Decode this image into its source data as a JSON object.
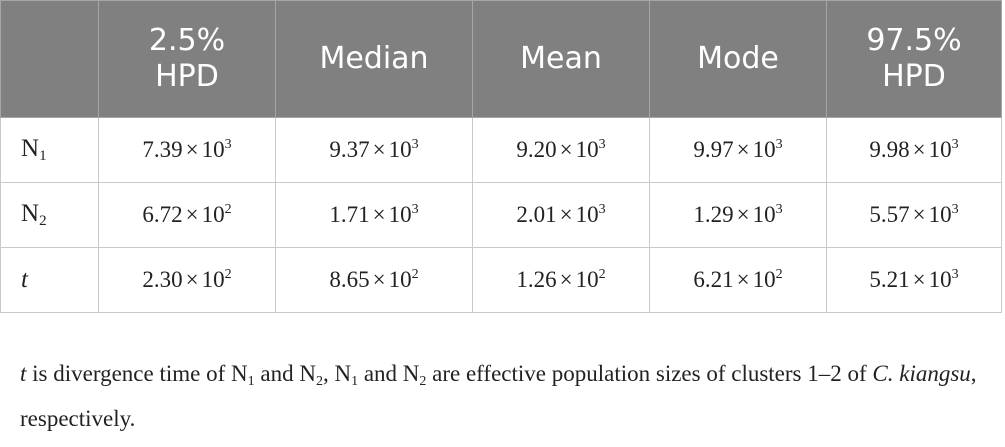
{
  "table": {
    "headers": [
      "",
      "2.5% HPD",
      "Median",
      "Mean",
      "Mode",
      "97.5% HPD"
    ],
    "header_lines": [
      [
        "",
        ""
      ],
      [
        "2.5%",
        "HPD"
      ],
      [
        "Median",
        ""
      ],
      [
        "Mean",
        ""
      ],
      [
        "Mode",
        ""
      ],
      [
        "97.5%",
        "HPD"
      ]
    ],
    "rows": [
      {
        "label_base": "N",
        "label_sub": "1",
        "cells": [
          {
            "mantissa": "7.39",
            "base": "10",
            "exp": "3"
          },
          {
            "mantissa": "9.37",
            "base": "10",
            "exp": "3"
          },
          {
            "mantissa": "9.20",
            "base": "10",
            "exp": "3"
          },
          {
            "mantissa": "9.97",
            "base": "10",
            "exp": "3"
          },
          {
            "mantissa": "9.98",
            "base": "10",
            "exp": "3"
          }
        ]
      },
      {
        "label_base": "N",
        "label_sub": "2",
        "cells": [
          {
            "mantissa": "6.72",
            "base": "10",
            "exp": "2"
          },
          {
            "mantissa": "1.71",
            "base": "10",
            "exp": "3"
          },
          {
            "mantissa": "2.01",
            "base": "10",
            "exp": "3"
          },
          {
            "mantissa": "1.29",
            "base": "10",
            "exp": "3"
          },
          {
            "mantissa": "5.57",
            "base": "10",
            "exp": "3"
          }
        ]
      },
      {
        "label_base": "t",
        "label_sub": "",
        "label_italic": true,
        "cells": [
          {
            "mantissa": "2.30",
            "base": "10",
            "exp": "2"
          },
          {
            "mantissa": "8.65",
            "base": "10",
            "exp": "2"
          },
          {
            "mantissa": "1.26",
            "base": "10",
            "exp": "2"
          },
          {
            "mantissa": "6.21",
            "base": "10",
            "exp": "2"
          },
          {
            "mantissa": "5.21",
            "base": "10",
            "exp": "3"
          }
        ]
      }
    ],
    "times_symbol": "×"
  },
  "footnote": {
    "t": "t",
    "p1": " is divergence time of N",
    "s1": "1",
    "p2": " and N",
    "s2": "2",
    "p3": ", N",
    "s3": "1",
    "p4": " and N",
    "s4": "2",
    "p5": " are effective population sizes of clusters 1–2 of ",
    "species": "C. kiangsu",
    "p6": ", respectively."
  }
}
